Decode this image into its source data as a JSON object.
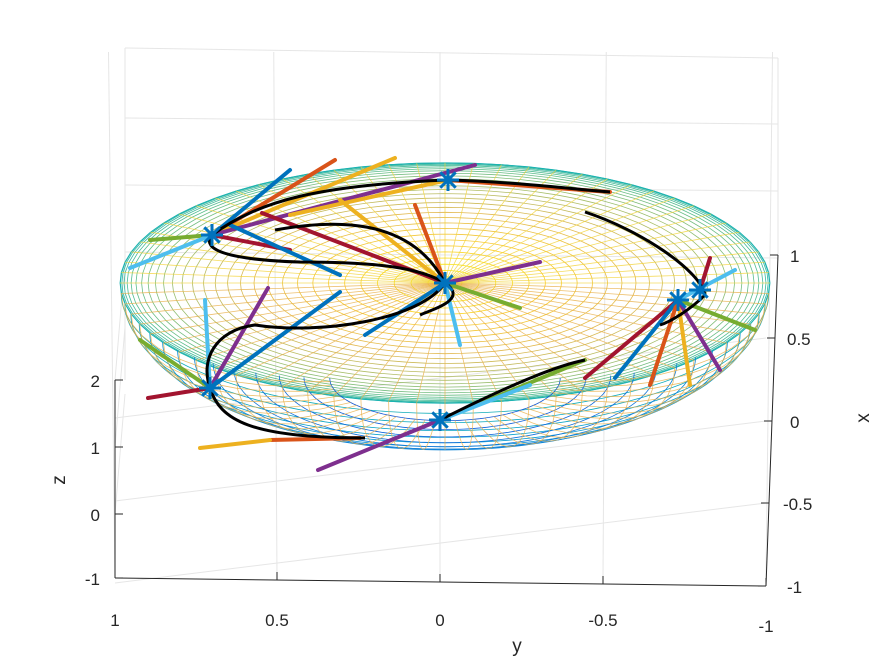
{
  "chart_data": {
    "type": "3d-surface-with-trajectories",
    "title": "",
    "xlabel": "x",
    "ylabel": "y",
    "zlabel": "z",
    "x_ticks": [
      "1",
      "0.5",
      "0",
      "-0.5",
      "-1"
    ],
    "y_ticks": [
      "1",
      "0.5",
      "0",
      "-0.5",
      "-1"
    ],
    "z_ticks": [
      "2",
      "1",
      "0",
      "-1"
    ],
    "xlim": [
      -1,
      1
    ],
    "ylim": [
      -1,
      1
    ],
    "zlim": [
      -1,
      2.5
    ],
    "grid": true,
    "surface": {
      "shape": "oblate spheroid",
      "colormap": "parula",
      "style": "mesh"
    },
    "markers": [
      {
        "label": "asterisk",
        "y": 0.0,
        "x": 0.82
      },
      {
        "label": "asterisk",
        "y": 0.7,
        "x": 1.0
      },
      {
        "label": "asterisk",
        "y": -0.72,
        "x": 0.55
      },
      {
        "label": "asterisk",
        "y": 0.72,
        "x": 0.3
      },
      {
        "label": "asterisk",
        "y": 0.0,
        "x": 0.1
      },
      {
        "label": "asterisk",
        "y": -0.88,
        "x": 0.6
      }
    ],
    "arrow_colors": [
      "#0072bd",
      "#d95319",
      "#edb120",
      "#7e2f8e",
      "#77ac30",
      "#4dbeee",
      "#a2142f"
    ],
    "trajectory_color": "#000000"
  }
}
